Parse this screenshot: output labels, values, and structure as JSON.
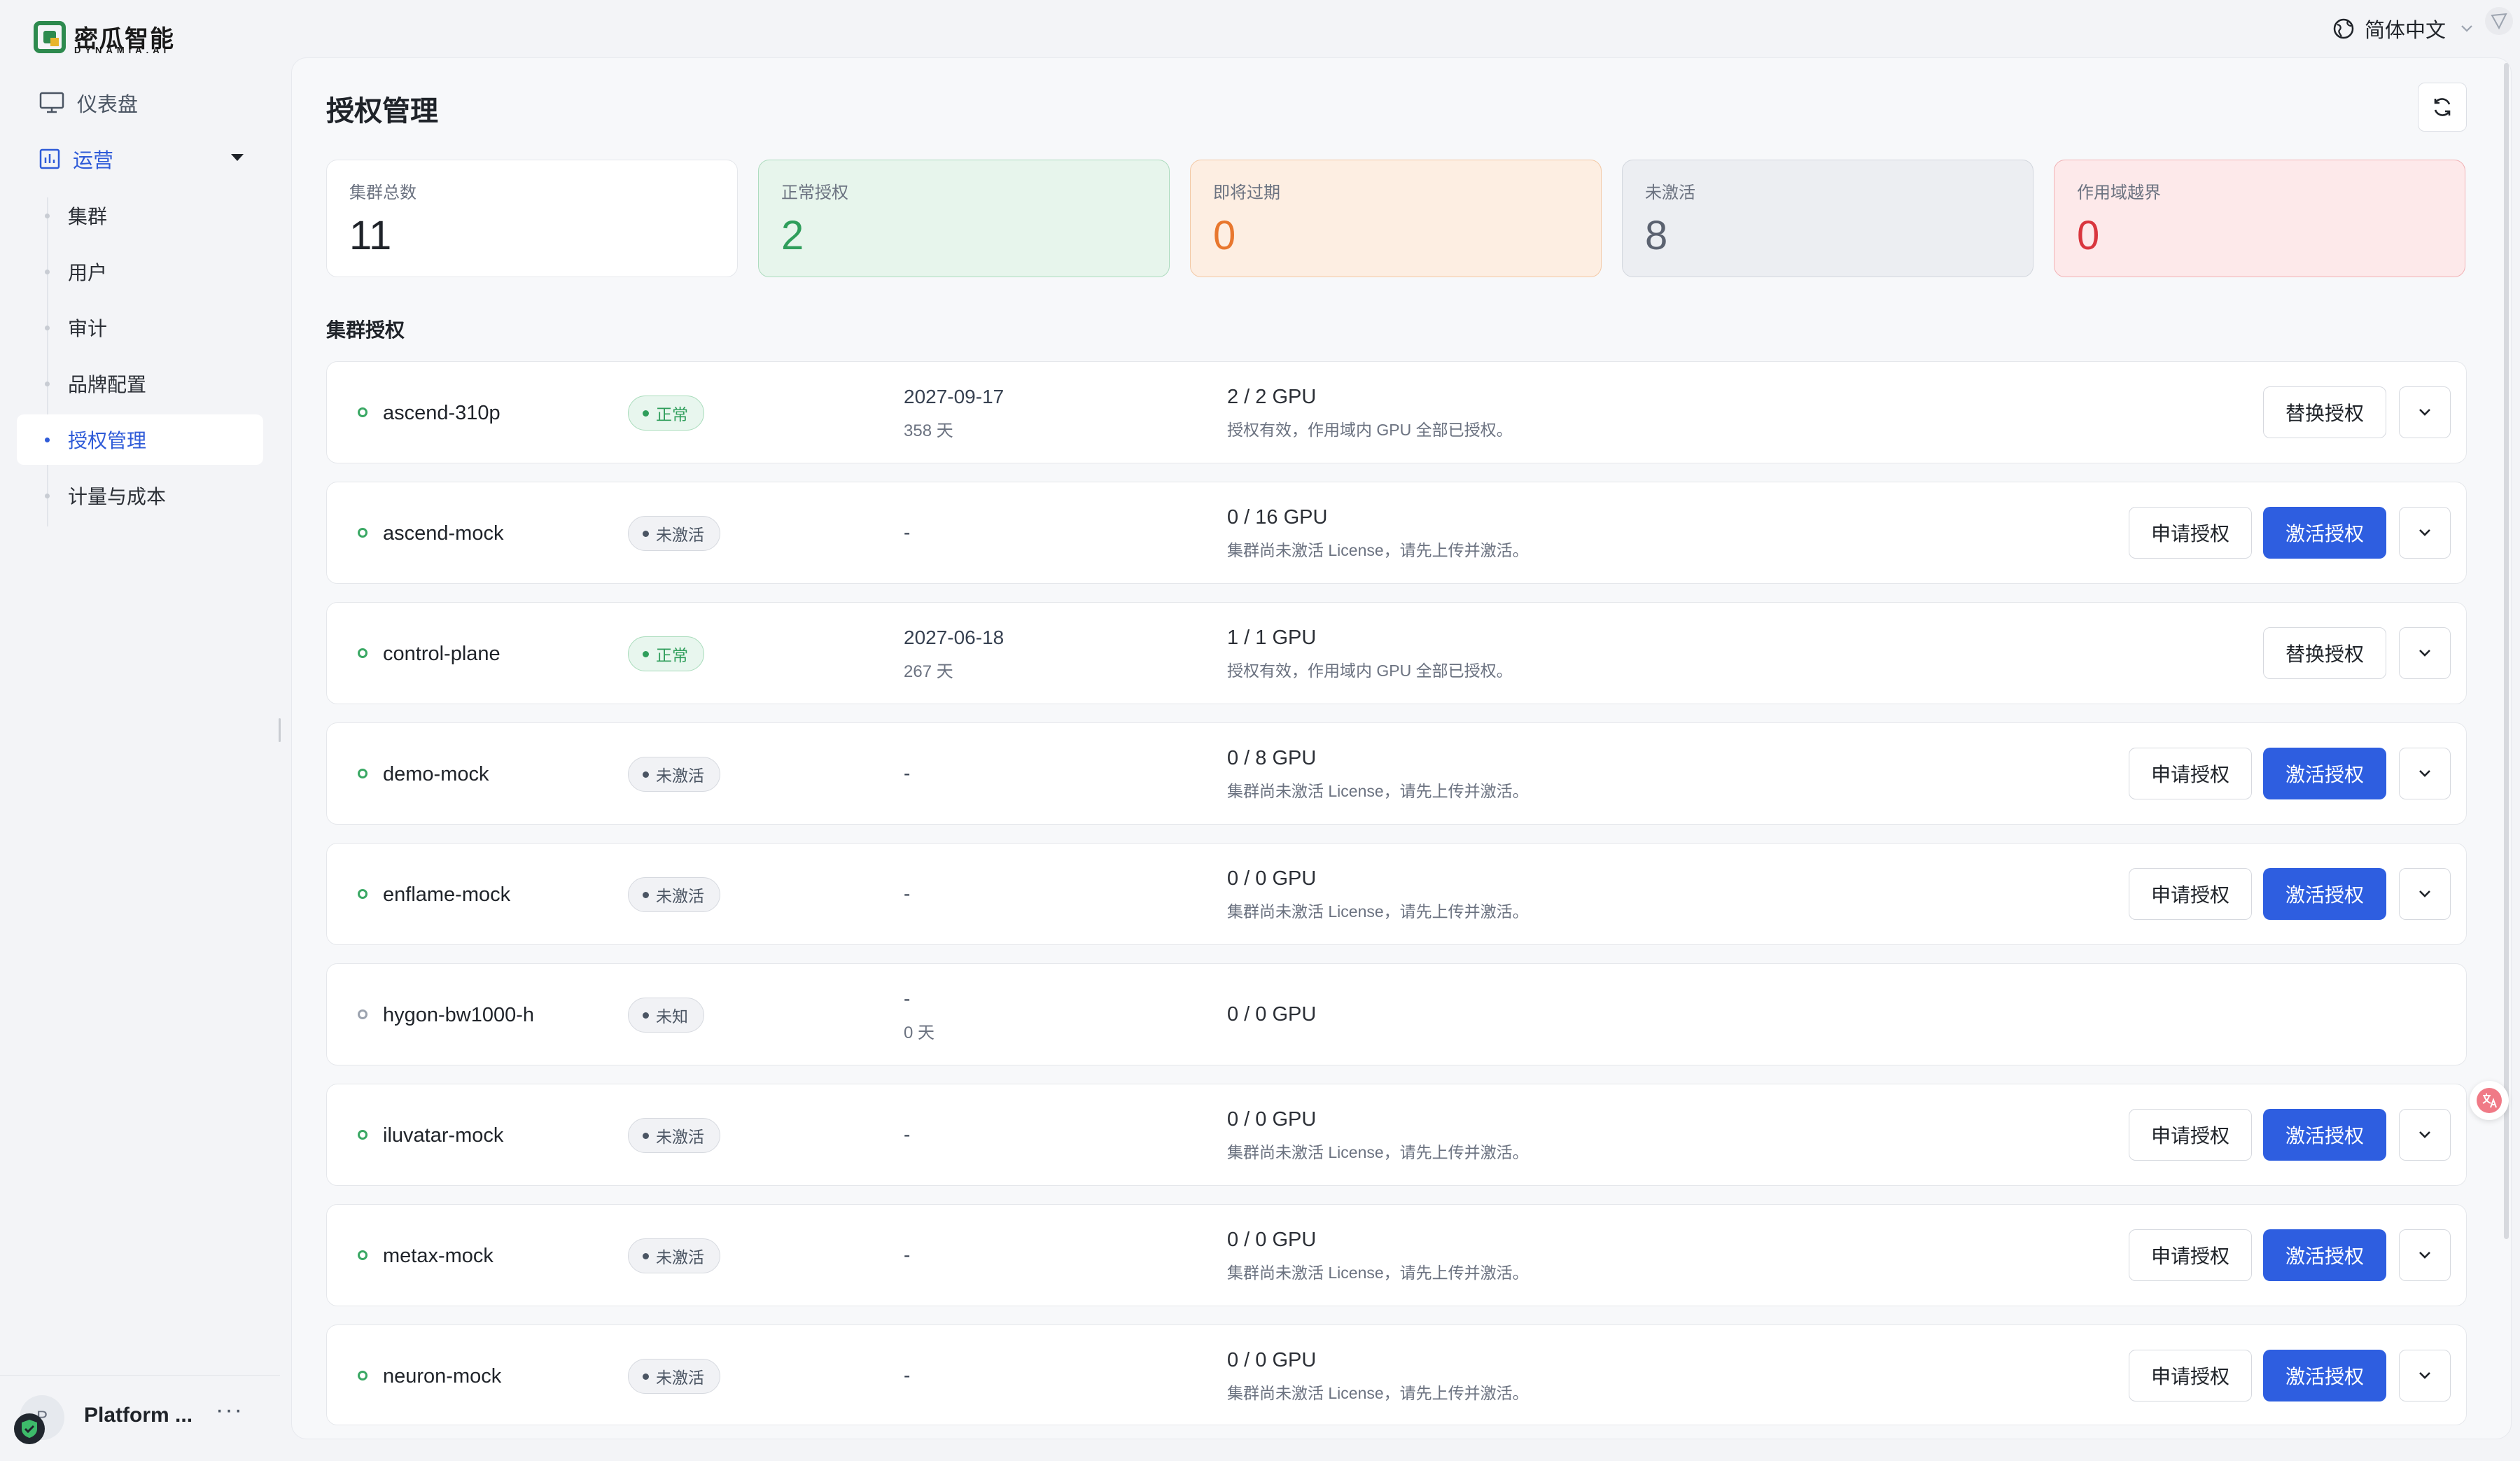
{
  "brand": {
    "name": "密瓜智能",
    "sub": "DYNAMIA.AI"
  },
  "language": "简体中文",
  "nav": {
    "dashboard": "仪表盘",
    "operations": "运营",
    "sub_items": [
      "集群",
      "用户",
      "审计",
      "品牌配置",
      "授权管理",
      "计量与成本"
    ],
    "active_index": 4
  },
  "user": {
    "name": "Platform ...",
    "avatar_initial": "P",
    "more": "···"
  },
  "page": {
    "title": "授权管理",
    "section_title": "集群授权"
  },
  "stats": [
    {
      "label": "集群总数",
      "value": "11"
    },
    {
      "label": "正常授权",
      "value": "2"
    },
    {
      "label": "即将过期",
      "value": "0"
    },
    {
      "label": "未激活",
      "value": "8"
    },
    {
      "label": "作用域越界",
      "value": "0"
    }
  ],
  "buttons": {
    "replace": "替换授权",
    "apply": "申请授权",
    "activate": "激活授权"
  },
  "clusters": [
    {
      "name": "ascend-310p",
      "status": "正常",
      "date": "2027-09-17",
      "days": "358 天",
      "gpu": "2 / 2 GPU",
      "note": "授权有效，作用域内 GPU 全部已授权。"
    },
    {
      "name": "ascend-mock",
      "status": "未激活",
      "date": "-",
      "days": "",
      "gpu": "0 / 16 GPU",
      "note": "集群尚未激活 License，请先上传并激活。"
    },
    {
      "name": "control-plane",
      "status": "正常",
      "date": "2027-06-18",
      "days": "267 天",
      "gpu": "1 / 1 GPU",
      "note": "授权有效，作用域内 GPU 全部已授权。"
    },
    {
      "name": "demo-mock",
      "status": "未激活",
      "date": "-",
      "days": "",
      "gpu": "0 / 8 GPU",
      "note": "集群尚未激活 License，请先上传并激活。"
    },
    {
      "name": "enflame-mock",
      "status": "未激活",
      "date": "-",
      "days": "",
      "gpu": "0 / 0 GPU",
      "note": "集群尚未激活 License，请先上传并激活。"
    },
    {
      "name": "hygon-bw1000-h",
      "status": "未知",
      "date": "-",
      "days": "0 天",
      "gpu": "0 / 0 GPU",
      "note": ""
    },
    {
      "name": "iluvatar-mock",
      "status": "未激活",
      "date": "-",
      "days": "",
      "gpu": "0 / 0 GPU",
      "note": "集群尚未激活 License，请先上传并激活。"
    },
    {
      "name": "metax-mock",
      "status": "未激活",
      "date": "-",
      "days": "",
      "gpu": "0 / 0 GPU",
      "note": "集群尚未激活 License，请先上传并激活。"
    },
    {
      "name": "neuron-mock",
      "status": "未激活",
      "date": "-",
      "days": "",
      "gpu": "0 / 0 GPU",
      "note": "集群尚未激活 License，请先上传并激活。"
    }
  ],
  "colors": {
    "accent": "#2e5ee0",
    "ok": "#2f9e5b",
    "warn": "#e8772e",
    "danger": "#d9363e",
    "muted": "#5b6270"
  }
}
